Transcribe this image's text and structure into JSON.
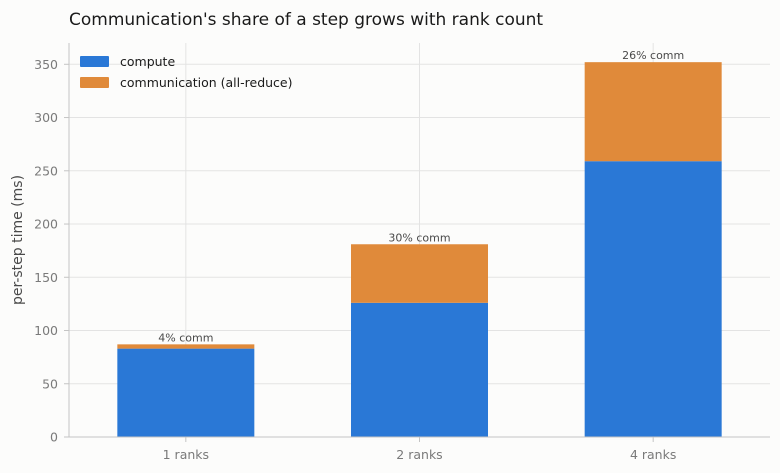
{
  "chart_data": {
    "type": "bar",
    "stacked": true,
    "title": "Communication's share of a step grows with rank count",
    "xlabel": "",
    "ylabel": "per-step time (ms)",
    "ylim": [
      0,
      370
    ],
    "yticks": [
      0,
      50,
      100,
      150,
      200,
      250,
      300,
      350
    ],
    "categories": [
      "1 ranks",
      "2 ranks",
      "4 ranks"
    ],
    "series": [
      {
        "name": "compute",
        "values": [
          83,
          126,
          259
        ],
        "color": "#2a78d6"
      },
      {
        "name": "communication (all-reduce)",
        "values": [
          4,
          55,
          93
        ],
        "color": "#e08a3a"
      }
    ],
    "data_labels": [
      "4% comm",
      "30% comm",
      "26% comm"
    ],
    "grid": true,
    "legend_position": "top-left"
  }
}
